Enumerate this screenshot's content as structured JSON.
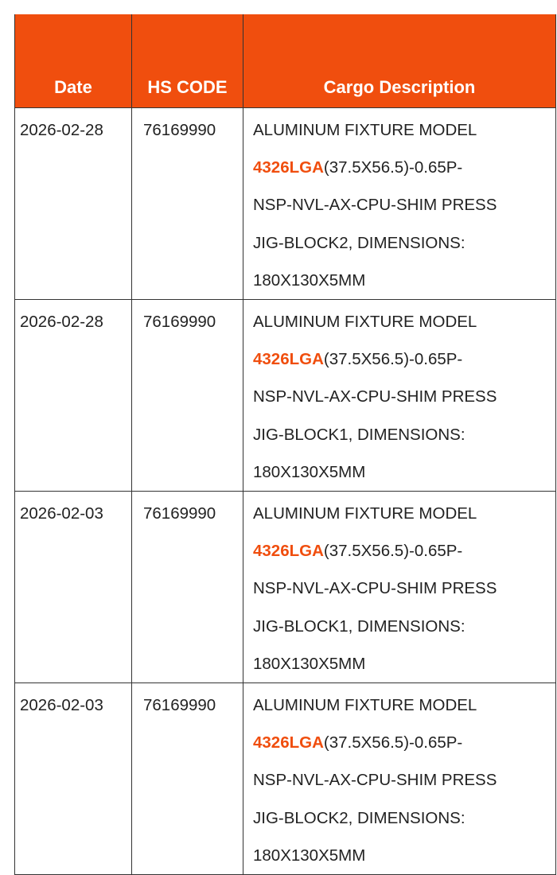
{
  "header": {
    "date": "Date",
    "hs_code": "HS CODE",
    "cargo_description": "Cargo Description"
  },
  "accent_color": "#f04e0e",
  "rows": [
    {
      "date": "2026-02-28",
      "hs_code": "76169990",
      "desc": {
        "line1": "ALUMINUM FIXTURE MODEL",
        "highlight": "4326LGA",
        "line2_rest": "(37.5X56.5)-0.65P-",
        "line3": "NSP-NVL-AX-CPU-SHIM PRESS",
        "line4": "JIG-BLOCK2, DIMENSIONS:",
        "line5": "180X130X5MM"
      }
    },
    {
      "date": "2026-02-28",
      "hs_code": "76169990",
      "desc": {
        "line1": "ALUMINUM FIXTURE MODEL",
        "highlight": "4326LGA",
        "line2_rest": "(37.5X56.5)-0.65P-",
        "line3": "NSP-NVL-AX-CPU-SHIM PRESS",
        "line4": "JIG-BLOCK1, DIMENSIONS:",
        "line5": "180X130X5MM"
      }
    },
    {
      "date": "2026-02-03",
      "hs_code": "76169990",
      "desc": {
        "line1": "ALUMINUM FIXTURE MODEL",
        "highlight": "4326LGA",
        "line2_rest": "(37.5X56.5)-0.65P-",
        "line3": "NSP-NVL-AX-CPU-SHIM PRESS",
        "line4": "JIG-BLOCK1, DIMENSIONS:",
        "line5": "180X130X5MM"
      }
    },
    {
      "date": "2026-02-03",
      "hs_code": "76169990",
      "desc": {
        "line1": "ALUMINUM FIXTURE MODEL",
        "highlight": "4326LGA",
        "line2_rest": "(37.5X56.5)-0.65P-",
        "line3": "NSP-NVL-AX-CPU-SHIM PRESS",
        "line4": "JIG-BLOCK2, DIMENSIONS:",
        "line5": "180X130X5MM"
      }
    }
  ]
}
